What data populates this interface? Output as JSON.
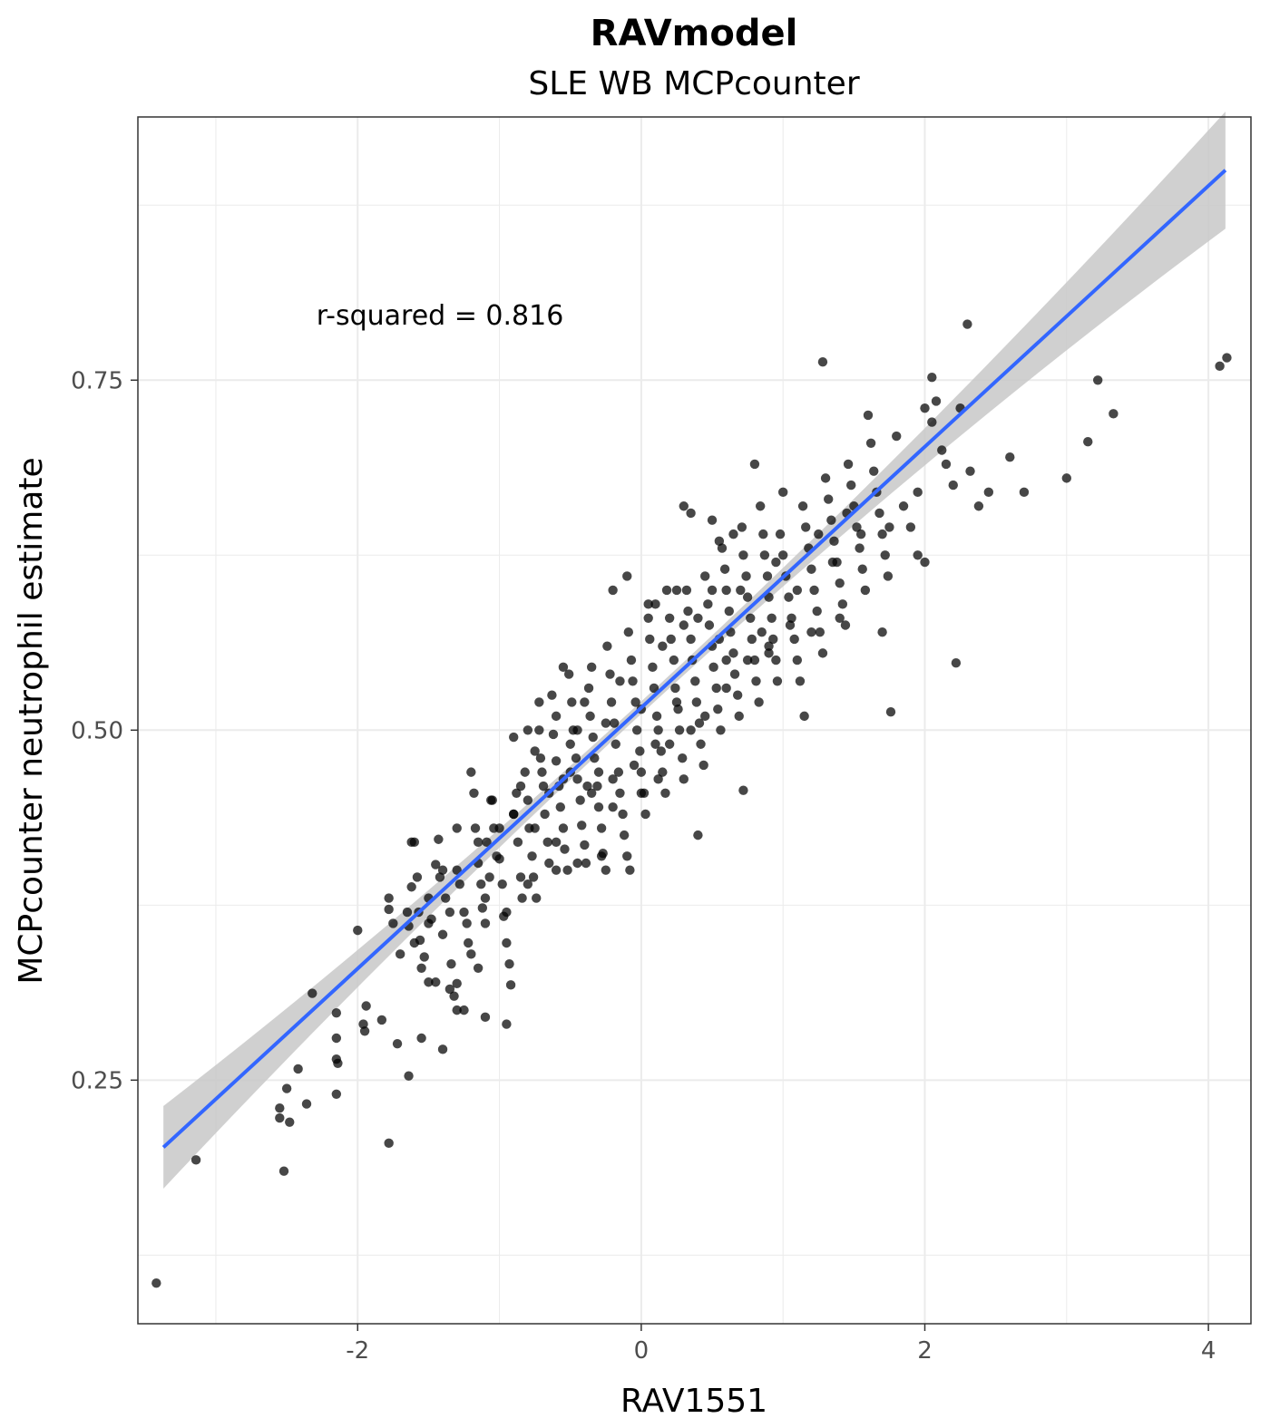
{
  "chart_data": {
    "type": "scatter",
    "title": "RAVmodel",
    "subtitle": "SLE WB MCPcounter",
    "xlabel": "RAV1551",
    "ylabel": "MCPcounter neutrophil estimate",
    "annotation": "r-squared = 0.816",
    "xlim": [
      -3.55,
      4.3
    ],
    "ylim": [
      0.076,
      0.938
    ],
    "x_ticks": [
      -2,
      0,
      2,
      4
    ],
    "x_tick_labels": [
      "-2",
      "0",
      "2",
      "4"
    ],
    "y_ticks": [
      0.25,
      0.5,
      0.75
    ],
    "y_tick_labels": [
      "0.25",
      "0.50",
      "0.75"
    ],
    "grid": true,
    "point_color": "#000000",
    "fit_color": "#3366ff",
    "ribbon_color": "#c8c8c8",
    "fit_line": {
      "x": [
        -3.37,
        4.12
      ],
      "y": [
        0.202,
        0.9
      ]
    },
    "points": [
      [
        -3.42,
        0.105
      ],
      [
        -3.14,
        0.193
      ],
      [
        -2.52,
        0.185
      ],
      [
        -2.5,
        0.244
      ],
      [
        -2.55,
        0.223
      ],
      [
        -2.55,
        0.23
      ],
      [
        -2.48,
        0.22
      ],
      [
        -2.42,
        0.258
      ],
      [
        -2.36,
        0.233
      ],
      [
        -2.32,
        0.312
      ],
      [
        -2.15,
        0.265
      ],
      [
        -2.15,
        0.24
      ],
      [
        -2.14,
        0.262
      ],
      [
        -2.15,
        0.28
      ],
      [
        -2.15,
        0.298
      ],
      [
        -1.96,
        0.29
      ],
      [
        -1.95,
        0.285
      ],
      [
        -1.94,
        0.303
      ],
      [
        -1.83,
        0.293
      ],
      [
        -1.78,
        0.205
      ],
      [
        -1.72,
        0.276
      ],
      [
        -1.64,
        0.253
      ],
      [
        -2.0,
        0.357
      ],
      [
        -1.78,
        0.38
      ],
      [
        -1.78,
        0.372
      ],
      [
        -1.75,
        0.362
      ],
      [
        -1.64,
        0.36
      ],
      [
        -1.6,
        0.348
      ],
      [
        -1.58,
        0.395
      ],
      [
        -1.62,
        0.42
      ],
      [
        -1.62,
        0.388
      ],
      [
        -1.57,
        0.37
      ],
      [
        -1.56,
        0.35
      ],
      [
        -1.53,
        0.338
      ],
      [
        -1.5,
        0.362
      ],
      [
        -1.48,
        0.365
      ],
      [
        -1.45,
        0.404
      ],
      [
        -1.43,
        0.422
      ],
      [
        -1.42,
        0.395
      ],
      [
        -1.4,
        0.354
      ],
      [
        -1.38,
        0.38
      ],
      [
        -1.35,
        0.37
      ],
      [
        -1.34,
        0.333
      ],
      [
        -1.32,
        0.31
      ],
      [
        -1.3,
        0.319
      ],
      [
        -1.28,
        0.39
      ],
      [
        -1.25,
        0.37
      ],
      [
        -1.23,
        0.362
      ],
      [
        -1.22,
        0.348
      ],
      [
        -1.2,
        0.34
      ],
      [
        -1.18,
        0.455
      ],
      [
        -1.17,
        0.43
      ],
      [
        -1.15,
        0.405
      ],
      [
        -1.13,
        0.39
      ],
      [
        -1.12,
        0.373
      ],
      [
        -1.1,
        0.362
      ],
      [
        -1.09,
        0.42
      ],
      [
        -1.07,
        0.395
      ],
      [
        -1.06,
        0.45
      ],
      [
        -1.04,
        0.43
      ],
      [
        -1.02,
        0.41
      ],
      [
        -1.0,
        0.408
      ],
      [
        -0.98,
        0.39
      ],
      [
        -0.97,
        0.367
      ],
      [
        -0.95,
        0.348
      ],
      [
        -0.93,
        0.333
      ],
      [
        -0.92,
        0.318
      ],
      [
        -0.9,
        0.44
      ],
      [
        -0.88,
        0.455
      ],
      [
        -0.87,
        0.42
      ],
      [
        -0.85,
        0.395
      ],
      [
        -0.84,
        0.38
      ],
      [
        -0.82,
        0.47
      ],
      [
        -0.8,
        0.45
      ],
      [
        -0.79,
        0.43
      ],
      [
        -0.77,
        0.41
      ],
      [
        -0.76,
        0.395
      ],
      [
        -0.74,
        0.38
      ],
      [
        -0.72,
        0.5
      ],
      [
        -0.71,
        0.48
      ],
      [
        -0.69,
        0.46
      ],
      [
        -0.68,
        0.44
      ],
      [
        -0.66,
        0.42
      ],
      [
        -0.65,
        0.405
      ],
      [
        -0.63,
        0.525
      ],
      [
        -0.62,
        0.497
      ],
      [
        -0.6,
        0.478
      ],
      [
        -0.58,
        0.46
      ],
      [
        -0.57,
        0.445
      ],
      [
        -0.55,
        0.43
      ],
      [
        -0.54,
        0.415
      ],
      [
        -0.52,
        0.4
      ],
      [
        -0.51,
        0.54
      ],
      [
        -0.49,
        0.52
      ],
      [
        -0.48,
        0.5
      ],
      [
        -0.46,
        0.48
      ],
      [
        -0.45,
        0.465
      ],
      [
        -0.43,
        0.45
      ],
      [
        -0.42,
        0.432
      ],
      [
        -0.4,
        0.418
      ],
      [
        -0.39,
        0.405
      ],
      [
        -0.37,
        0.53
      ],
      [
        -0.36,
        0.51
      ],
      [
        -0.34,
        0.495
      ],
      [
        -0.33,
        0.48
      ],
      [
        -0.31,
        0.46
      ],
      [
        -0.3,
        0.445
      ],
      [
        -0.28,
        0.43
      ],
      [
        -0.27,
        0.412
      ],
      [
        -0.25,
        0.4
      ],
      [
        -0.24,
        0.56
      ],
      [
        -0.22,
        0.54
      ],
      [
        -0.21,
        0.52
      ],
      [
        -0.19,
        0.505
      ],
      [
        -0.18,
        0.49
      ],
      [
        -0.16,
        0.47
      ],
      [
        -0.15,
        0.455
      ],
      [
        -0.13,
        0.44
      ],
      [
        -0.12,
        0.425
      ],
      [
        -0.1,
        0.41
      ],
      [
        -0.09,
        0.57
      ],
      [
        -0.07,
        0.55
      ],
      [
        -0.06,
        0.535
      ],
      [
        -0.04,
        0.52
      ],
      [
        -0.03,
        0.5
      ],
      [
        -0.01,
        0.485
      ],
      [
        0.0,
        0.47
      ],
      [
        0.02,
        0.455
      ],
      [
        0.03,
        0.44
      ],
      [
        0.05,
        0.58
      ],
      [
        0.06,
        0.565
      ],
      [
        0.08,
        0.545
      ],
      [
        0.09,
        0.53
      ],
      [
        0.11,
        0.51
      ],
      [
        0.12,
        0.5
      ],
      [
        0.14,
        0.485
      ],
      [
        0.15,
        0.47
      ],
      [
        0.17,
        0.455
      ],
      [
        0.18,
        0.6
      ],
      [
        0.2,
        0.58
      ],
      [
        0.21,
        0.565
      ],
      [
        0.23,
        0.55
      ],
      [
        0.24,
        0.53
      ],
      [
        0.26,
        0.515
      ],
      [
        0.27,
        0.5
      ],
      [
        0.29,
        0.48
      ],
      [
        0.3,
        0.465
      ],
      [
        0.32,
        0.6
      ],
      [
        0.33,
        0.585
      ],
      [
        0.35,
        0.565
      ],
      [
        0.36,
        0.55
      ],
      [
        0.38,
        0.535
      ],
      [
        0.39,
        0.52
      ],
      [
        0.41,
        0.505
      ],
      [
        0.42,
        0.49
      ],
      [
        0.44,
        0.475
      ],
      [
        0.45,
        0.61
      ],
      [
        0.47,
        0.59
      ],
      [
        0.48,
        0.575
      ],
      [
        0.5,
        0.56
      ],
      [
        0.51,
        0.545
      ],
      [
        0.53,
        0.53
      ],
      [
        0.54,
        0.515
      ],
      [
        0.56,
        0.5
      ],
      [
        0.57,
        0.63
      ],
      [
        0.59,
        0.615
      ],
      [
        0.6,
        0.6
      ],
      [
        0.62,
        0.585
      ],
      [
        0.63,
        0.57
      ],
      [
        0.65,
        0.555
      ],
      [
        0.66,
        0.54
      ],
      [
        0.68,
        0.525
      ],
      [
        0.69,
        0.51
      ],
      [
        0.71,
        0.645
      ],
      [
        0.72,
        0.625
      ],
      [
        0.74,
        0.61
      ],
      [
        0.75,
        0.595
      ],
      [
        0.77,
        0.58
      ],
      [
        0.78,
        0.565
      ],
      [
        0.8,
        0.55
      ],
      [
        0.81,
        0.535
      ],
      [
        0.83,
        0.52
      ],
      [
        0.84,
        0.66
      ],
      [
        0.86,
        0.64
      ],
      [
        0.87,
        0.625
      ],
      [
        0.89,
        0.61
      ],
      [
        0.9,
        0.595
      ],
      [
        0.92,
        0.58
      ],
      [
        0.93,
        0.565
      ],
      [
        0.95,
        0.55
      ],
      [
        0.96,
        0.535
      ],
      [
        0.98,
        0.64
      ],
      [
        1.0,
        0.625
      ],
      [
        1.02,
        0.61
      ],
      [
        1.04,
        0.595
      ],
      [
        1.06,
        0.58
      ],
      [
        1.08,
        0.565
      ],
      [
        1.1,
        0.55
      ],
      [
        1.12,
        0.535
      ],
      [
        1.14,
        0.66
      ],
      [
        1.16,
        0.645
      ],
      [
        1.18,
        0.63
      ],
      [
        1.2,
        0.615
      ],
      [
        1.22,
        0.6
      ],
      [
        1.24,
        0.585
      ],
      [
        1.26,
        0.57
      ],
      [
        1.28,
        0.555
      ],
      [
        1.3,
        0.68
      ],
      [
        1.32,
        0.665
      ],
      [
        1.34,
        0.65
      ],
      [
        1.36,
        0.635
      ],
      [
        1.38,
        0.62
      ],
      [
        1.4,
        0.605
      ],
      [
        1.42,
        0.59
      ],
      [
        1.44,
        0.575
      ],
      [
        1.46,
        0.69
      ],
      [
        1.48,
        0.675
      ],
      [
        1.5,
        0.66
      ],
      [
        1.52,
        0.645
      ],
      [
        1.54,
        0.63
      ],
      [
        1.56,
        0.615
      ],
      [
        1.58,
        0.6
      ],
      [
        1.6,
        0.725
      ],
      [
        1.62,
        0.705
      ],
      [
        1.64,
        0.685
      ],
      [
        1.66,
        0.67
      ],
      [
        1.68,
        0.655
      ],
      [
        1.7,
        0.64
      ],
      [
        1.72,
        0.625
      ],
      [
        1.74,
        0.61
      ],
      [
        1.8,
        0.71
      ],
      [
        1.85,
        0.66
      ],
      [
        1.9,
        0.645
      ],
      [
        1.95,
        0.625
      ],
      [
        2.0,
        0.73
      ],
      [
        2.05,
        0.72
      ],
      [
        2.08,
        0.735
      ],
      [
        2.12,
        0.7
      ],
      [
        2.15,
        0.69
      ],
      [
        2.2,
        0.675
      ],
      [
        2.25,
        0.73
      ],
      [
        2.3,
        0.79
      ],
      [
        2.32,
        0.685
      ],
      [
        2.38,
        0.66
      ],
      [
        2.45,
        0.67
      ],
      [
        2.6,
        0.695
      ],
      [
        2.7,
        0.67
      ],
      [
        1.28,
        0.763
      ],
      [
        2.05,
        0.752
      ],
      [
        2.22,
        0.548
      ],
      [
        1.76,
        0.513
      ],
      [
        1.15,
        0.51
      ],
      [
        0.72,
        0.457
      ],
      [
        0.4,
        0.425
      ],
      [
        3.0,
        0.68
      ],
      [
        3.15,
        0.706
      ],
      [
        3.22,
        0.75
      ],
      [
        3.33,
        0.726
      ],
      [
        4.08,
        0.76
      ],
      [
        4.13,
        0.766
      ],
      [
        -0.08,
        0.4
      ],
      [
        -0.28,
        0.41
      ],
      [
        -0.45,
        0.405
      ],
      [
        -0.6,
        0.42
      ],
      [
        -0.75,
        0.43
      ],
      [
        -0.9,
        0.44
      ],
      [
        -1.05,
        0.45
      ],
      [
        -1.2,
        0.47
      ],
      [
        -1.3,
        0.43
      ],
      [
        -1.4,
        0.4
      ],
      [
        -1.5,
        0.38
      ],
      [
        -1.65,
        0.37
      ],
      [
        -1.7,
        0.34
      ],
      [
        -1.55,
        0.33
      ],
      [
        -1.45,
        0.32
      ],
      [
        -1.35,
        0.315
      ],
      [
        -1.25,
        0.3
      ],
      [
        -1.1,
        0.295
      ],
      [
        -0.95,
        0.29
      ],
      [
        -1.4,
        0.272
      ],
      [
        -1.55,
        0.28
      ],
      [
        -0.72,
        0.52
      ],
      [
        -0.55,
        0.545
      ],
      [
        -0.4,
        0.52
      ],
      [
        -0.2,
        0.6
      ],
      [
        -0.1,
        0.61
      ],
      [
        0.05,
        0.59
      ],
      [
        0.25,
        0.6
      ],
      [
        0.5,
        0.6
      ],
      [
        0.8,
        0.69
      ],
      [
        1.0,
        0.67
      ],
      [
        0.35,
        0.655
      ],
      [
        0.55,
        0.635
      ],
      [
        0.65,
        0.64
      ],
      [
        0.15,
        0.56
      ],
      [
        0.1,
        0.59
      ],
      [
        0.3,
        0.575
      ],
      [
        -0.35,
        0.545
      ],
      [
        -0.15,
        0.535
      ],
      [
        0.0,
        0.515
      ],
      [
        0.2,
        0.49
      ],
      [
        0.45,
        0.51
      ],
      [
        0.6,
        0.55
      ],
      [
        0.85,
        0.57
      ],
      [
        1.1,
        0.6
      ],
      [
        1.35,
        0.62
      ],
      [
        1.55,
        0.64
      ],
      [
        1.45,
        0.655
      ],
      [
        1.25,
        0.64
      ],
      [
        0.95,
        0.62
      ],
      [
        0.7,
        0.6
      ],
      [
        0.4,
        0.58
      ],
      [
        -0.25,
        0.505
      ],
      [
        -0.5,
        0.49
      ],
      [
        -0.7,
        0.47
      ],
      [
        -0.85,
        0.46
      ],
      [
        -1.0,
        0.43
      ],
      [
        -1.15,
        0.42
      ],
      [
        -0.3,
        0.47
      ],
      [
        -0.2,
        0.465
      ],
      [
        -0.05,
        0.475
      ],
      [
        0.1,
        0.49
      ],
      [
        0.25,
        0.52
      ],
      [
        0.55,
        0.565
      ],
      [
        0.75,
        0.55
      ],
      [
        0.9,
        0.555
      ],
      [
        1.05,
        0.575
      ],
      [
        -0.8,
        0.5
      ],
      [
        -0.6,
        0.51
      ],
      [
        -0.45,
        0.5
      ],
      [
        -0.65,
        0.455
      ],
      [
        -0.5,
        0.47
      ],
      [
        -0.35,
        0.455
      ],
      [
        -0.2,
        0.445
      ],
      [
        0.0,
        0.455
      ],
      [
        0.12,
        0.465
      ],
      [
        -1.6,
        0.42
      ],
      [
        -1.3,
        0.4
      ],
      [
        -1.1,
        0.38
      ],
      [
        -0.95,
        0.37
      ],
      [
        -0.8,
        0.39
      ],
      [
        -0.6,
        0.4
      ],
      [
        -1.5,
        0.32
      ],
      [
        -1.3,
        0.3
      ],
      [
        -1.15,
        0.33
      ],
      [
        1.7,
        0.57
      ],
      [
        1.4,
        0.58
      ],
      [
        1.2,
        0.57
      ],
      [
        0.9,
        0.56
      ],
      [
        0.6,
        0.53
      ],
      [
        0.35,
        0.5
      ],
      [
        2.0,
        0.62
      ],
      [
        1.95,
        0.67
      ],
      [
        1.75,
        0.645
      ],
      [
        0.3,
        0.66
      ],
      [
        0.5,
        0.65
      ],
      [
        -0.9,
        0.495
      ],
      [
        -0.75,
        0.485
      ],
      [
        -0.55,
        0.465
      ],
      [
        -0.38,
        0.46
      ]
    ]
  }
}
